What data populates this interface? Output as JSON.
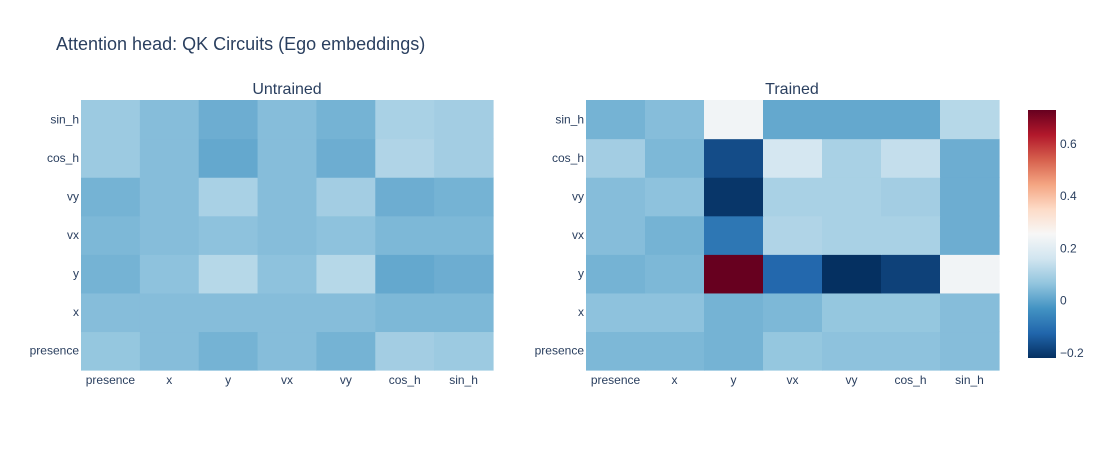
{
  "title": "Attention head: QK Circuits (Ego embeddings)",
  "chart_data": {
    "type": "heatmap",
    "colorscale": "RdBu (reversed)",
    "colorscale_stops": [
      "#053061",
      "#2166ac",
      "#4393c3",
      "#92c5de",
      "#d1e5f0",
      "#f7f7f7",
      "#fddbc7",
      "#f4a582",
      "#d6604d",
      "#b2182b",
      "#67001f"
    ],
    "zmin": -0.22,
    "zmax": 0.73,
    "colorbar": {
      "ticks": [
        -0.2,
        0,
        0.2,
        0.4,
        0.6
      ],
      "tick_labels": [
        "−0.2",
        "0",
        "0.2",
        "0.4",
        "0.6"
      ]
    },
    "x_categories": [
      "presence",
      "x",
      "y",
      "vx",
      "vy",
      "cos_h",
      "sin_h"
    ],
    "y_categories": [
      "presence",
      "x",
      "y",
      "vx",
      "vy",
      "cos_h",
      "sin_h"
    ],
    "panels": [
      {
        "title": "Untrained",
        "z": [
          [
            0.07,
            0.05,
            0.03,
            0.05,
            0.03,
            0.09,
            0.08
          ],
          [
            0.05,
            0.05,
            0.05,
            0.05,
            0.05,
            0.04,
            0.04
          ],
          [
            0.03,
            0.06,
            0.12,
            0.06,
            0.12,
            0.01,
            0.02
          ],
          [
            0.04,
            0.05,
            0.06,
            0.05,
            0.06,
            0.04,
            0.04
          ],
          [
            0.03,
            0.05,
            0.1,
            0.05,
            0.09,
            0.02,
            0.03
          ],
          [
            0.08,
            0.05,
            0.01,
            0.05,
            0.02,
            0.11,
            0.09
          ],
          [
            0.08,
            0.05,
            0.02,
            0.05,
            0.03,
            0.1,
            0.09
          ]
        ]
      },
      {
        "title": "Trained",
        "z": [
          [
            0.04,
            0.04,
            0.03,
            0.07,
            0.06,
            0.06,
            0.05
          ],
          [
            0.06,
            0.06,
            0.03,
            0.04,
            0.07,
            0.07,
            0.05
          ],
          [
            0.03,
            0.04,
            0.73,
            -0.12,
            -0.22,
            -0.19,
            0.24
          ],
          [
            0.05,
            0.03,
            -0.09,
            0.11,
            0.1,
            0.1,
            0.02
          ],
          [
            0.05,
            0.06,
            -0.21,
            0.1,
            0.1,
            0.09,
            0.02
          ],
          [
            0.09,
            0.04,
            -0.17,
            0.17,
            0.1,
            0.14,
            0.02
          ],
          [
            0.03,
            0.05,
            0.24,
            0.01,
            0.01,
            0.01,
            0.12
          ]
        ]
      }
    ]
  }
}
